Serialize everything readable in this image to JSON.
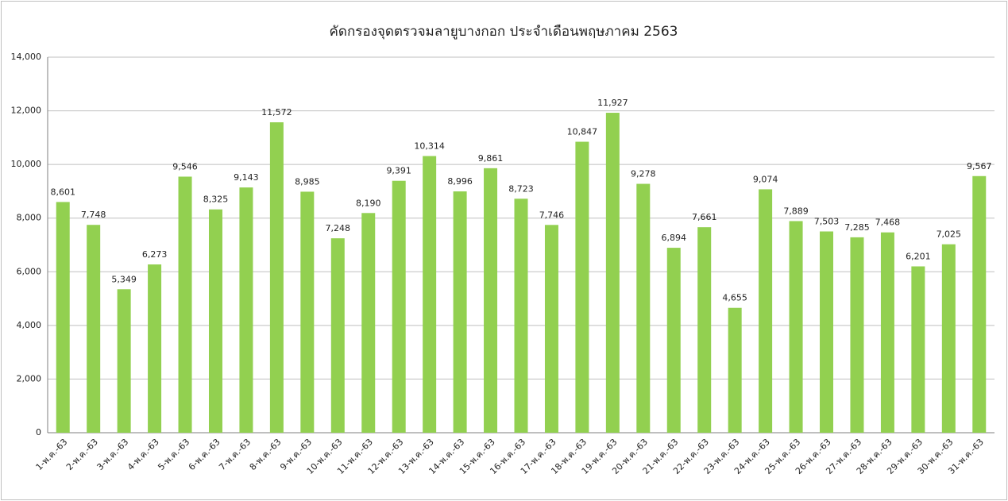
{
  "chart_data": {
    "type": "bar",
    "title": "คัดกรองจุดตรวจมลายูบางกอก ประจำเดือนพฤษภาคม 2563",
    "categories": [
      "1-พ.ค.-63",
      "2-พ.ค.-63",
      "3-พ.ค.-63",
      "4-พ.ค.-63",
      "5-พ.ค.-63",
      "6-พ.ค.-63",
      "7-พ.ค.-63",
      "8-พ.ค.-63",
      "9-พ.ค.-63",
      "10-พ.ค.-63",
      "11-พ.ค.-63",
      "12-พ.ค.-63",
      "13-พ.ค.-63",
      "14-พ.ค.-63",
      "15-พ.ค.-63",
      "16-พ.ค.-63",
      "17-พ.ค.-63",
      "18-พ.ค.-63",
      "19-พ.ค.-63",
      "20-พ.ค.-63",
      "21-พ.ค.-63",
      "22-พ.ค.-63",
      "23-พ.ค.-63",
      "24-พ.ค.-63",
      "25-พ.ค.-63",
      "26-พ.ค.-63",
      "27-พ.ค.-63",
      "28-พ.ค.-63",
      "29-พ.ค.-63",
      "30-พ.ค.-63",
      "31-พ.ค.-63"
    ],
    "values": [
      8601,
      7748,
      5349,
      6273,
      9546,
      8325,
      9143,
      11572,
      8985,
      7248,
      8190,
      9391,
      10314,
      8996,
      9861,
      8723,
      7746,
      10847,
      11927,
      9278,
      6894,
      7661,
      4655,
      9074,
      7889,
      7503,
      7285,
      7468,
      6201,
      7025,
      9567
    ],
    "value_labels": [
      "8,601",
      "7,748",
      "5,349",
      "6,273",
      "9,546",
      "8,325",
      "9,143",
      "11,572",
      "8,985",
      "7,248",
      "8,190",
      "9,391",
      "10,314",
      "8,996",
      "9,861",
      "8,723",
      "7,746",
      "10,847",
      "11,927",
      "9,278",
      "6,894",
      "7,661",
      "4,655",
      "9,074",
      "7,889",
      "7,503",
      "7,285",
      "7,468",
      "6,201",
      "7,025",
      "9,567"
    ],
    "color": "#92d050",
    "ylim": [
      0,
      14000
    ],
    "yticks": [
      0,
      {
        "value": 2000,
        "label": "2,000"
      },
      {
        "value": 4000,
        "label": "4,000"
      },
      {
        "value": 6000,
        "label": "6,000"
      },
      {
        "value": 8000,
        "label": "8,000"
      },
      {
        "value": 10000,
        "label": "10,000"
      },
      {
        "value": 12000,
        "label": "12,000"
      },
      {
        "value": 14000,
        "label": "14,000"
      }
    ],
    "grid": true
  }
}
